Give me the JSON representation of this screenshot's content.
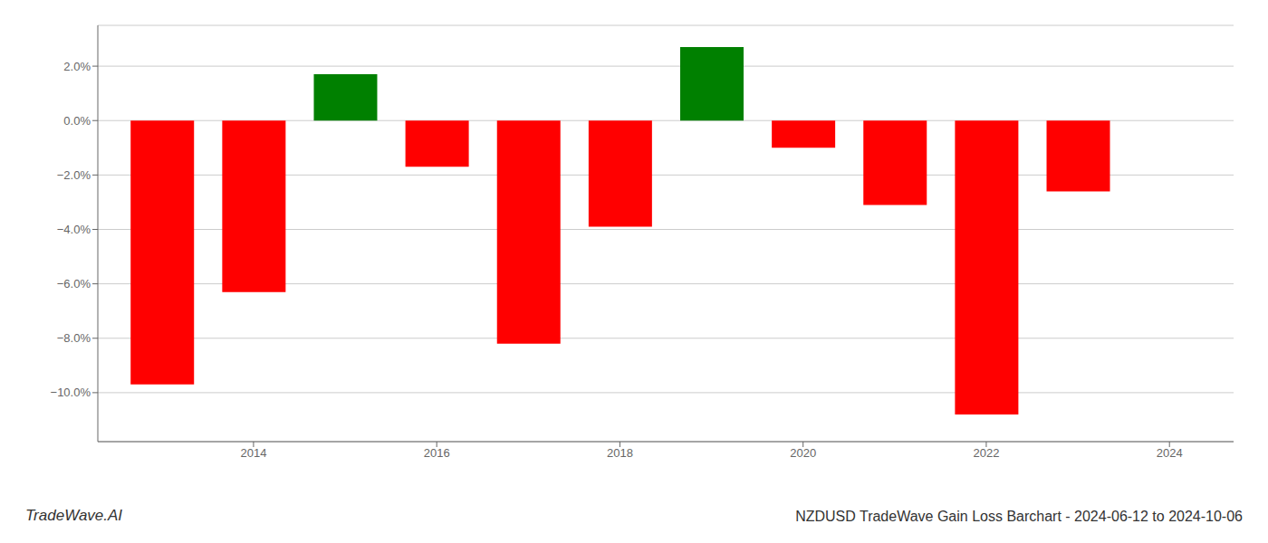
{
  "chart_data": {
    "type": "bar",
    "title": "NZDUSD TradeWave Gain Loss Barchart - 2024-06-12 to 2024-10-06",
    "annotations": [
      "TradeWave.AI"
    ],
    "x": [
      2013,
      2014,
      2015,
      2016,
      2017,
      2018,
      2019,
      2020,
      2021,
      2022,
      2023
    ],
    "values": [
      -9.7,
      -6.3,
      1.7,
      -1.7,
      -8.2,
      -3.9,
      2.7,
      -1.0,
      -3.1,
      -10.8,
      -2.6
    ],
    "colors": [
      "red",
      "red",
      "green",
      "red",
      "red",
      "red",
      "green",
      "red",
      "red",
      "red",
      "red"
    ],
    "xlim": [
      2012.3,
      2024.7
    ],
    "xticks": [
      2014,
      2016,
      2018,
      2020,
      2022,
      2024
    ],
    "ylim": [
      -11.8,
      3.5
    ],
    "yticks": [
      {
        "value": -10.0,
        "label": "−10.0%"
      },
      {
        "value": -8.0,
        "label": "−8.0%"
      },
      {
        "value": -6.0,
        "label": "−6.0%"
      },
      {
        "value": -4.0,
        "label": "−4.0%"
      },
      {
        "value": -2.0,
        "label": "−2.0%"
      },
      {
        "value": 0.0,
        "label": "0.0%"
      },
      {
        "value": 2.0,
        "label": "2.0%"
      }
    ],
    "grid": true
  }
}
